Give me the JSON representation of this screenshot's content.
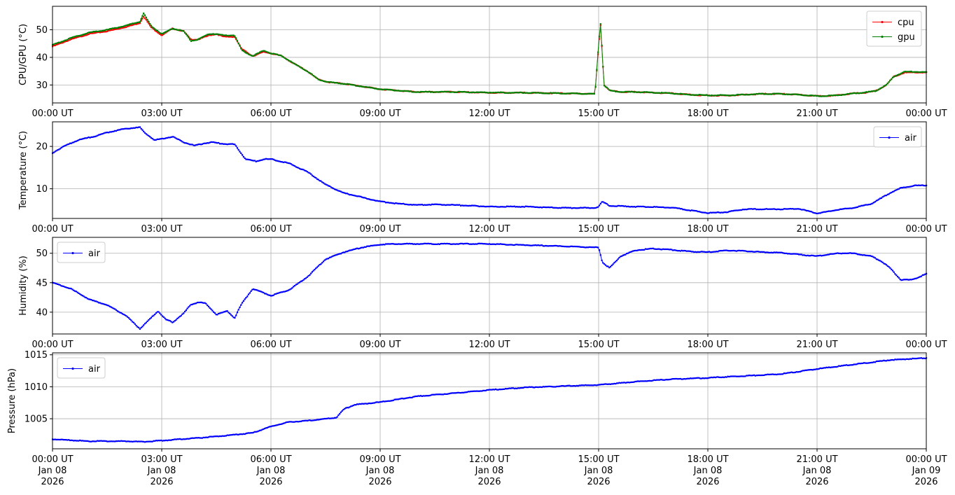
{
  "colors": {
    "cpu": "#ff0000",
    "gpu": "#008000",
    "air": "#0000ff",
    "grid": "#b0b0b0"
  },
  "chart_data": [
    {
      "type": "line",
      "title": "",
      "xlabel": "",
      "ylabel": "CPU/GPU (°C)",
      "ylim": [
        23.5,
        58.5
      ],
      "yticks": [
        30,
        40,
        50
      ],
      "grid": true,
      "legend": "top-right",
      "x_tick_labels": [
        "00:00 UT",
        "03:00 UT",
        "06:00 UT",
        "09:00 UT",
        "12:00 UT",
        "15:00 UT",
        "18:00 UT",
        "21:00 UT",
        "00:00 UT"
      ],
      "x_hours": [
        0,
        0.5,
        1,
        1.5,
        2,
        2.4,
        2.5,
        2.7,
        3,
        3.3,
        3.6,
        3.8,
        4,
        4.3,
        4.5,
        4.7,
        5,
        5.2,
        5.5,
        5.8,
        6,
        6.3,
        6.6,
        7,
        7.3,
        7.6,
        8,
        8.5,
        9,
        10,
        11,
        12,
        13,
        14,
        14.9,
        15,
        15.05,
        15.15,
        15.3,
        15.6,
        16,
        16.5,
        17,
        17.5,
        18,
        18.5,
        19,
        19.5,
        20,
        20.5,
        21,
        21.5,
        22,
        22.3,
        22.6,
        22.9,
        23.1,
        23.4,
        23.7,
        24
      ],
      "series": [
        {
          "name": "cpu",
          "color": "#ff0000",
          "values": [
            44,
            46.5,
            48.5,
            49.5,
            51,
            52.5,
            55,
            51,
            48,
            50.5,
            49.5,
            46.5,
            46.5,
            48,
            48.5,
            47.5,
            47.5,
            43,
            40.5,
            42,
            41.5,
            40.5,
            38,
            35,
            32,
            31,
            30.5,
            29.5,
            28.5,
            27.5,
            27.5,
            27.2,
            27.2,
            27,
            26.8,
            44,
            52,
            30,
            28,
            27.5,
            27.5,
            27.2,
            27,
            26.5,
            26.2,
            26.2,
            26.5,
            26.8,
            26.8,
            26.5,
            26,
            26.2,
            27,
            27.2,
            27.8,
            30,
            33,
            34.5,
            34.6,
            34.5
          ]
        },
        {
          "name": "gpu",
          "color": "#008000",
          "values": [
            44.5,
            47,
            49,
            50,
            51.5,
            53,
            56,
            51.5,
            48.5,
            50.5,
            49.5,
            46,
            46.5,
            48.5,
            48.5,
            48,
            48,
            42.5,
            40.5,
            42.5,
            41.5,
            40.5,
            38,
            35,
            32,
            31,
            30.5,
            29.5,
            28.5,
            27.5,
            27.5,
            27.3,
            27.2,
            27,
            26.8,
            45,
            52.5,
            30,
            28,
            27.5,
            27.5,
            27.3,
            27,
            26.5,
            26.3,
            26.3,
            26.5,
            26.8,
            26.8,
            26.5,
            26,
            26.2,
            27,
            27.3,
            27.8,
            30,
            33,
            34.8,
            34.8,
            34.6
          ]
        }
      ]
    },
    {
      "type": "line",
      "title": "",
      "xlabel": "",
      "ylabel": "Temperature (°C)",
      "ylim": [
        3,
        25.8
      ],
      "yticks": [
        10,
        20
      ],
      "grid": true,
      "legend": "top-right",
      "x_tick_labels": [
        "00:00 UT",
        "03:00 UT",
        "06:00 UT",
        "09:00 UT",
        "12:00 UT",
        "15:00 UT",
        "18:00 UT",
        "21:00 UT",
        "00:00 UT"
      ],
      "x_hours": [
        0,
        0.3,
        0.7,
        1.2,
        1.5,
        2,
        2.4,
        2.5,
        2.8,
        3,
        3.3,
        3.6,
        3.9,
        4.2,
        4.4,
        4.7,
        5,
        5.3,
        5.6,
        5.8,
        6,
        6.5,
        7,
        7.5,
        8,
        8.5,
        9,
        9.5,
        10,
        10.5,
        11,
        12,
        13,
        14,
        14.9,
        15,
        15.1,
        15.3,
        16,
        17,
        18,
        18.5,
        19,
        20,
        20.5,
        21,
        21.5,
        22,
        22.5,
        23,
        23.3,
        23.7,
        24
      ],
      "series": [
        {
          "name": "air",
          "color": "#0000ff",
          "values": [
            18.5,
            20,
            21.5,
            22.5,
            23.3,
            24.2,
            24.5,
            23.5,
            21.5,
            21.8,
            22.3,
            21,
            20.2,
            20.8,
            21,
            20.6,
            20.5,
            17,
            16.5,
            17,
            17,
            16,
            14,
            11,
            9,
            8,
            7,
            6.5,
            6.2,
            6.3,
            6.2,
            5.8,
            5.8,
            5.5,
            5.5,
            5.8,
            7,
            6,
            5.8,
            5.6,
            4.3,
            4.5,
            5.2,
            5.2,
            5.3,
            4.2,
            5,
            5.5,
            6.5,
            9,
            10.2,
            10.8,
            10.8
          ]
        }
      ]
    },
    {
      "type": "line",
      "title": "",
      "xlabel": "",
      "ylabel": "Humidity (%)",
      "ylim": [
        36.3,
        52.7
      ],
      "yticks": [
        40,
        45,
        50
      ],
      "grid": true,
      "legend": "top-left",
      "x_tick_labels": [
        "00:00 UT",
        "03:00 UT",
        "06:00 UT",
        "09:00 UT",
        "12:00 UT",
        "15:00 UT",
        "18:00 UT",
        "21:00 UT",
        "00:00 UT"
      ],
      "x_hours": [
        0,
        0.5,
        1,
        1.5,
        2,
        2.4,
        2.7,
        2.9,
        3.1,
        3.3,
        3.6,
        3.8,
        4,
        4.2,
        4.5,
        4.8,
        5,
        5.2,
        5.5,
        5.8,
        6,
        6.5,
        7,
        7.5,
        8,
        8.5,
        9,
        9.5,
        10,
        11,
        12,
        13,
        14,
        14.9,
        15,
        15.1,
        15.3,
        15.6,
        16,
        16.5,
        17,
        17.5,
        18,
        18.5,
        19,
        19.5,
        20,
        20.5,
        21,
        21.3,
        21.6,
        22,
        22.5,
        22.8,
        23,
        23.3,
        23.6,
        24
      ],
      "series": [
        {
          "name": "air",
          "color": "#0000ff",
          "values": [
            45,
            44,
            42.2,
            41.2,
            39.5,
            37.2,
            39,
            40.2,
            38.8,
            38.3,
            39.8,
            41.3,
            41.7,
            41.5,
            39.6,
            40.2,
            39,
            41.5,
            44,
            43.3,
            42.8,
            43.8,
            46,
            49,
            50.2,
            51,
            51.5,
            51.6,
            51.6,
            51.6,
            51.6,
            51.4,
            51.2,
            51,
            51,
            48.5,
            47.5,
            49.5,
            50.5,
            50.8,
            50.6,
            50.3,
            50.2,
            50.5,
            50.4,
            50.2,
            50.1,
            49.8,
            49.5,
            49.8,
            50,
            50,
            49.5,
            48.5,
            47.5,
            45.5,
            45.5,
            46.5
          ]
        }
      ]
    },
    {
      "type": "line",
      "title": "",
      "xlabel": "",
      "ylabel": "Pressure (hPa)",
      "ylim": [
        1000.3,
        1015.3
      ],
      "yticks": [
        1005,
        1010,
        1015
      ],
      "grid": true,
      "legend": "top-left",
      "x_tick_labels": [
        "00:00 UT\nJan 08\n2026",
        "03:00 UT\nJan 08\n2026",
        "06:00 UT\nJan 08\n2026",
        "09:00 UT\nJan 08\n2026",
        "12:00 UT\nJan 08\n2026",
        "15:00 UT\nJan 08\n2026",
        "18:00 UT\nJan 08\n2026",
        "21:00 UT\nJan 08\n2026",
        "00:00 UT\nJan 09\n2026"
      ],
      "x_hours": [
        0,
        1,
        2,
        2.5,
        3,
        4,
        5,
        5.5,
        6,
        6.5,
        7,
        7.5,
        7.8,
        8,
        8.3,
        9,
        10,
        11,
        12,
        13,
        14,
        15,
        16,
        17,
        18,
        19,
        20,
        21,
        22,
        23,
        24
      ],
      "series": [
        {
          "name": "air",
          "color": "#0000ff",
          "values": [
            1001.8,
            1001.5,
            1001.5,
            1001.4,
            1001.6,
            1002,
            1002.5,
            1002.8,
            1003.8,
            1004.5,
            1004.7,
            1005,
            1005.2,
            1006.5,
            1007.2,
            1007.6,
            1008.5,
            1009,
            1009.5,
            1009.9,
            1010.1,
            1010.3,
            1010.8,
            1011.2,
            1011.4,
            1011.7,
            1012,
            1012.8,
            1013.5,
            1014.2,
            1014.5
          ]
        }
      ]
    }
  ]
}
